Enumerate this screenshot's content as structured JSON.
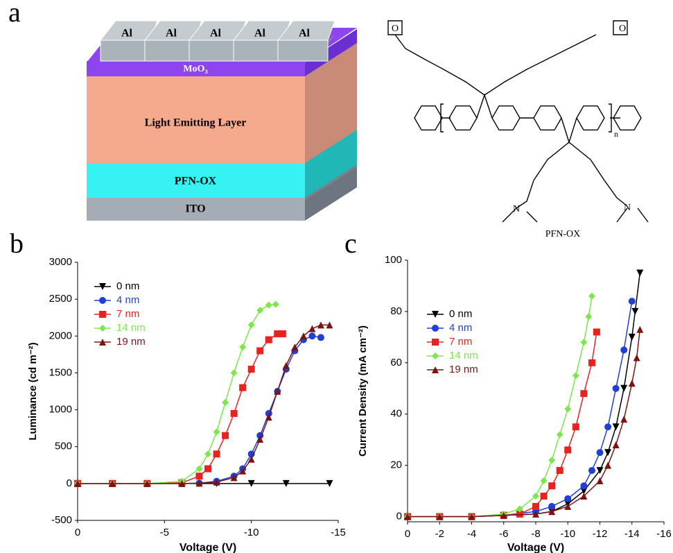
{
  "panel_a": {
    "label": "a",
    "device": {
      "electrodes": [
        "Al",
        "Al",
        "Al",
        "Al",
        "Al"
      ],
      "layers": [
        "MoO₃",
        "Light Emitting Layer",
        "PFN-OX",
        "ITO"
      ]
    },
    "structure": {
      "atoms": [
        "O",
        "O",
        "N",
        "N"
      ],
      "repeat": "n",
      "name": "PFN-OX"
    }
  },
  "chart_data": [
    {
      "type": "line",
      "panel_label": "b",
      "x_label": "Voltage (V)",
      "y_label": "Luminance (cd m⁻²)",
      "xlim": [
        0,
        -15
      ],
      "xticks": [
        0,
        -5,
        -10,
        -15
      ],
      "ylim": [
        -500,
        3000
      ],
      "yticks": [
        -500,
        0,
        500,
        1000,
        1500,
        2000,
        2500,
        3000
      ],
      "series": [
        {
          "name": "0 nm",
          "color": "#000000",
          "marker": "tri-down",
          "x": [
            0,
            -2,
            -4,
            -6,
            -8,
            -10,
            -12,
            -14.5
          ],
          "values": [
            0,
            0,
            0,
            0,
            0,
            0,
            0,
            0
          ]
        },
        {
          "name": "4 nm",
          "color": "#1f3fd6",
          "marker": "circle",
          "x": [
            0,
            -2,
            -4,
            -6,
            -7,
            -8,
            -9,
            -9.5,
            -10,
            -10.5,
            -11,
            -11.5,
            -12,
            -12.5,
            -13,
            -13.5,
            -14
          ],
          "values": [
            0,
            0,
            0,
            0,
            5,
            30,
            100,
            200,
            400,
            650,
            950,
            1250,
            1550,
            1800,
            1950,
            2000,
            1980
          ]
        },
        {
          "name": "7 nm",
          "color": "#e8221f",
          "marker": "square",
          "x": [
            0,
            -2,
            -4,
            -6,
            -7,
            -7.5,
            -8,
            -8.5,
            -9,
            -9.5,
            -10,
            -10.5,
            -11,
            -11.5,
            -11.8
          ],
          "values": [
            0,
            0,
            0,
            10,
            100,
            200,
            400,
            650,
            950,
            1300,
            1550,
            1800,
            1950,
            2030,
            2030
          ]
        },
        {
          "name": "14 nm",
          "color": "#7be84a",
          "marker": "diamond",
          "x": [
            0,
            -2,
            -4,
            -6,
            -7,
            -7.5,
            -8,
            -8.5,
            -9,
            -9.5,
            -10,
            -10.5,
            -11,
            -11.4
          ],
          "values": [
            0,
            0,
            0,
            30,
            200,
            400,
            700,
            1100,
            1500,
            1850,
            2150,
            2350,
            2420,
            2430
          ]
        },
        {
          "name": "19 nm",
          "color": "#7a1414",
          "marker": "tri-up",
          "x": [
            0,
            -2,
            -4,
            -6,
            -7,
            -8,
            -9,
            -9.5,
            -10,
            -10.5,
            -11,
            -11.5,
            -12,
            -12.5,
            -13,
            -13.5,
            -14,
            -14.5
          ],
          "values": [
            0,
            0,
            0,
            0,
            5,
            20,
            80,
            170,
            330,
            600,
            900,
            1250,
            1600,
            1850,
            2000,
            2100,
            2150,
            2150
          ]
        }
      ]
    },
    {
      "type": "line",
      "panel_label": "c",
      "x_label": "Voltage (V)",
      "y_label": "Current Density (mA cm⁻²)",
      "xlim": [
        0,
        -16
      ],
      "xticks": [
        0,
        -2,
        -4,
        -6,
        -8,
        -10,
        -12,
        -14,
        -16
      ],
      "ylim": [
        -2,
        100
      ],
      "yticks": [
        0,
        20,
        40,
        60,
        80,
        100
      ],
      "series": [
        {
          "name": "0 nm",
          "color": "#000000",
          "marker": "tri-down",
          "x": [
            0,
            -2,
            -4,
            -6,
            -8,
            -9,
            -10,
            -11,
            -12,
            -12.5,
            -13,
            -13.5,
            -14,
            -14.2,
            -14.5
          ],
          "values": [
            0,
            0,
            0,
            0.5,
            1,
            2,
            5,
            10,
            18,
            25,
            35,
            50,
            70,
            80,
            95
          ]
        },
        {
          "name": "4 nm",
          "color": "#1f3fd6",
          "marker": "circle",
          "x": [
            0,
            -2,
            -4,
            -6,
            -8,
            -9,
            -10,
            -11,
            -11.5,
            -12,
            -12.5,
            -13,
            -13.5,
            -14
          ],
          "values": [
            0,
            0,
            0,
            0.5,
            2,
            4,
            7,
            12,
            18,
            25,
            35,
            50,
            65,
            84
          ]
        },
        {
          "name": "7 nm",
          "color": "#e8221f",
          "marker": "square",
          "x": [
            0,
            -2,
            -4,
            -6,
            -7,
            -8,
            -8.5,
            -9,
            -9.5,
            -10,
            -10.5,
            -11,
            -11.5,
            -11.8
          ],
          "values": [
            0,
            0,
            0,
            0.5,
            1,
            4,
            8,
            12,
            18,
            26,
            35,
            48,
            60,
            72
          ]
        },
        {
          "name": "14 nm",
          "color": "#7be84a",
          "marker": "diamond",
          "x": [
            0,
            -2,
            -4,
            -6,
            -7,
            -8,
            -8.5,
            -9,
            -9.5,
            -10,
            -10.5,
            -11,
            -11.3,
            -11.5
          ],
          "values": [
            0,
            0,
            0,
            1,
            3,
            8,
            14,
            22,
            32,
            42,
            55,
            68,
            78,
            86
          ]
        },
        {
          "name": "19 nm",
          "color": "#7a1414",
          "marker": "tri-up",
          "x": [
            0,
            -2,
            -4,
            -6,
            -8,
            -9,
            -10,
            -11,
            -12,
            -12.5,
            -13,
            -13.5,
            -14,
            -14.3,
            -14.5
          ],
          "values": [
            0,
            0,
            0,
            0.5,
            1,
            2,
            4,
            8,
            14,
            20,
            28,
            38,
            52,
            62,
            73
          ]
        }
      ]
    }
  ]
}
